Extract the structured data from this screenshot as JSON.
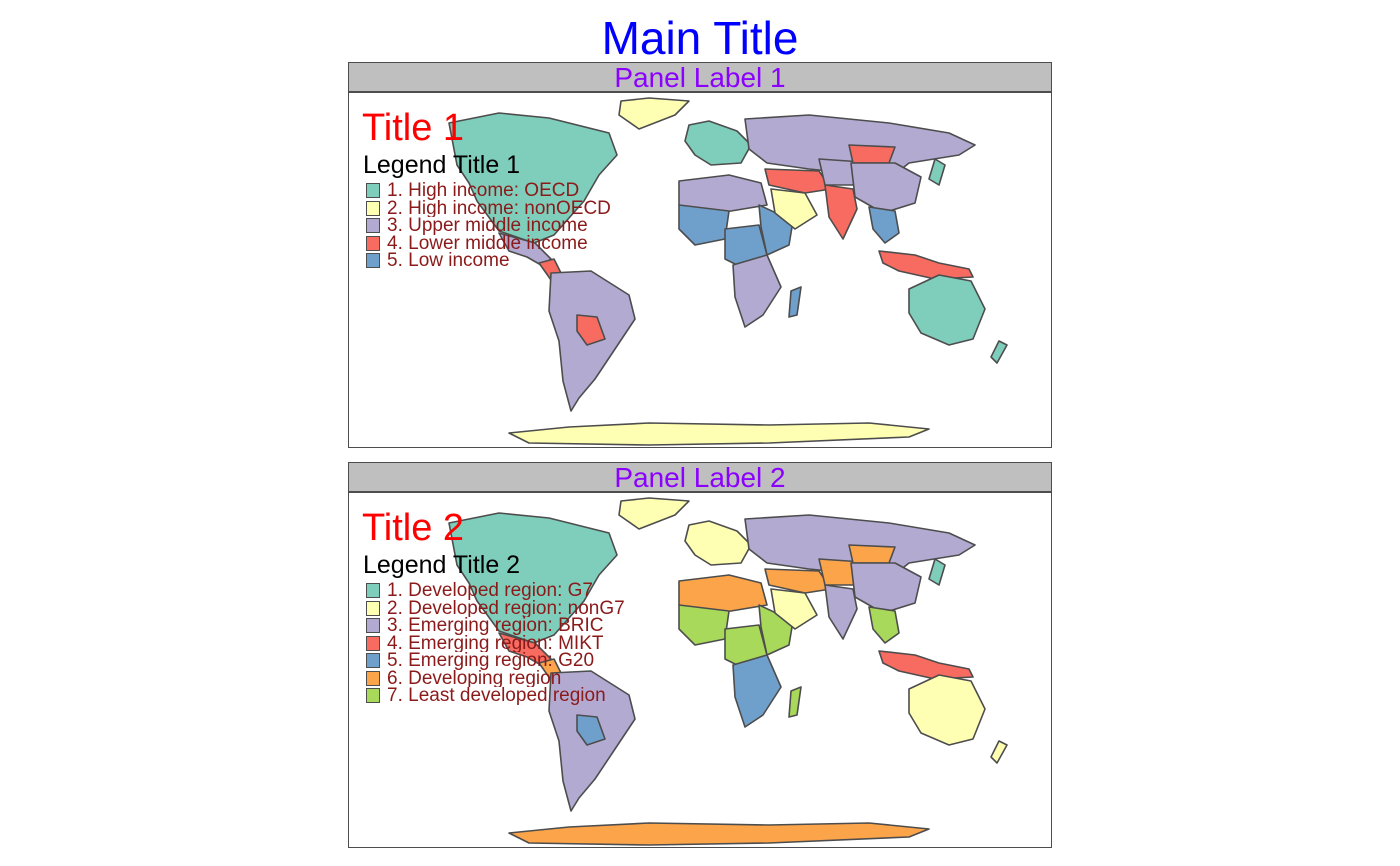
{
  "main_title": "Main Title",
  "colors": {
    "main_title": "#0000ff",
    "panel_label": "#8b00ff",
    "map_title": "#ff0000",
    "legend_label": "#8b1a1a",
    "panel_strip": "#bfbfbf",
    "border": "#4d4d4d"
  },
  "panels": [
    {
      "panel_label": "Panel Label 1",
      "title": "Title 1",
      "legend_title": "Legend Title 1",
      "legend": [
        {
          "label": "1. High income: OECD",
          "color": "#7fcdbb"
        },
        {
          "label": "2. High income: nonOECD",
          "color": "#ffffb3"
        },
        {
          "label": "3. Upper middle income",
          "color": "#b3aad2"
        },
        {
          "label": "4. Lower middle income",
          "color": "#f86b60"
        },
        {
          "label": "5. Low income",
          "color": "#6fa0cc"
        }
      ]
    },
    {
      "panel_label": "Panel Label 2",
      "title": "Title 2",
      "legend_title": "Legend Title 2",
      "legend": [
        {
          "label": "1. Developed region: G7",
          "color": "#7fcdbb"
        },
        {
          "label": "2. Developed region: nonG7",
          "color": "#ffffb3"
        },
        {
          "label": "3. Emerging region: BRIC",
          "color": "#b3aad2"
        },
        {
          "label": "4. Emerging region: MIKT",
          "color": "#f86b60"
        },
        {
          "label": "5. Emerging region: G20",
          "color": "#6fa0cc"
        },
        {
          "label": "6. Developing region",
          "color": "#fca44a"
        },
        {
          "label": "7. Least developed region",
          "color": "#a9d95a"
        }
      ]
    }
  ],
  "map_fills": [
    {
      "north_america": "#7fcdbb",
      "greenland": "#ffffb3",
      "mexico": "#b3aad2",
      "central_america": "#f86b60",
      "south_america": "#b3aad2",
      "bolivia": "#f86b60",
      "europe": "#7fcdbb",
      "russia": "#b3aad2",
      "north_africa": "#b3aad2",
      "west_africa": "#6fa0cc",
      "central_africa": "#6fa0cc",
      "east_africa": "#6fa0cc",
      "southern_africa": "#b3aad2",
      "madagascar": "#6fa0cc",
      "arabia": "#ffffb3",
      "middle_east": "#f86b60",
      "central_asia": "#b3aad2",
      "mongolia": "#f86b60",
      "china": "#b3aad2",
      "india": "#f86b60",
      "southeast_asia": "#6fa0cc",
      "japan": "#7fcdbb",
      "indonesia": "#f86b60",
      "australia": "#7fcdbb",
      "new_zealand": "#7fcdbb",
      "antarctica": "#ffffb3"
    },
    {
      "north_america": "#7fcdbb",
      "greenland": "#ffffb3",
      "mexico": "#f86b60",
      "central_america": "#fca44a",
      "south_america": "#b3aad2",
      "bolivia": "#6fa0cc",
      "europe": "#ffffb3",
      "russia": "#b3aad2",
      "north_africa": "#fca44a",
      "west_africa": "#a9d95a",
      "central_africa": "#a9d95a",
      "east_africa": "#a9d95a",
      "southern_africa": "#6fa0cc",
      "madagascar": "#a9d95a",
      "arabia": "#ffffb3",
      "middle_east": "#fca44a",
      "central_asia": "#fca44a",
      "mongolia": "#fca44a",
      "china": "#b3aad2",
      "india": "#b3aad2",
      "southeast_asia": "#a9d95a",
      "japan": "#7fcdbb",
      "indonesia": "#f86b60",
      "australia": "#ffffb3",
      "new_zealand": "#ffffb3",
      "antarctica": "#fca44a"
    }
  ]
}
